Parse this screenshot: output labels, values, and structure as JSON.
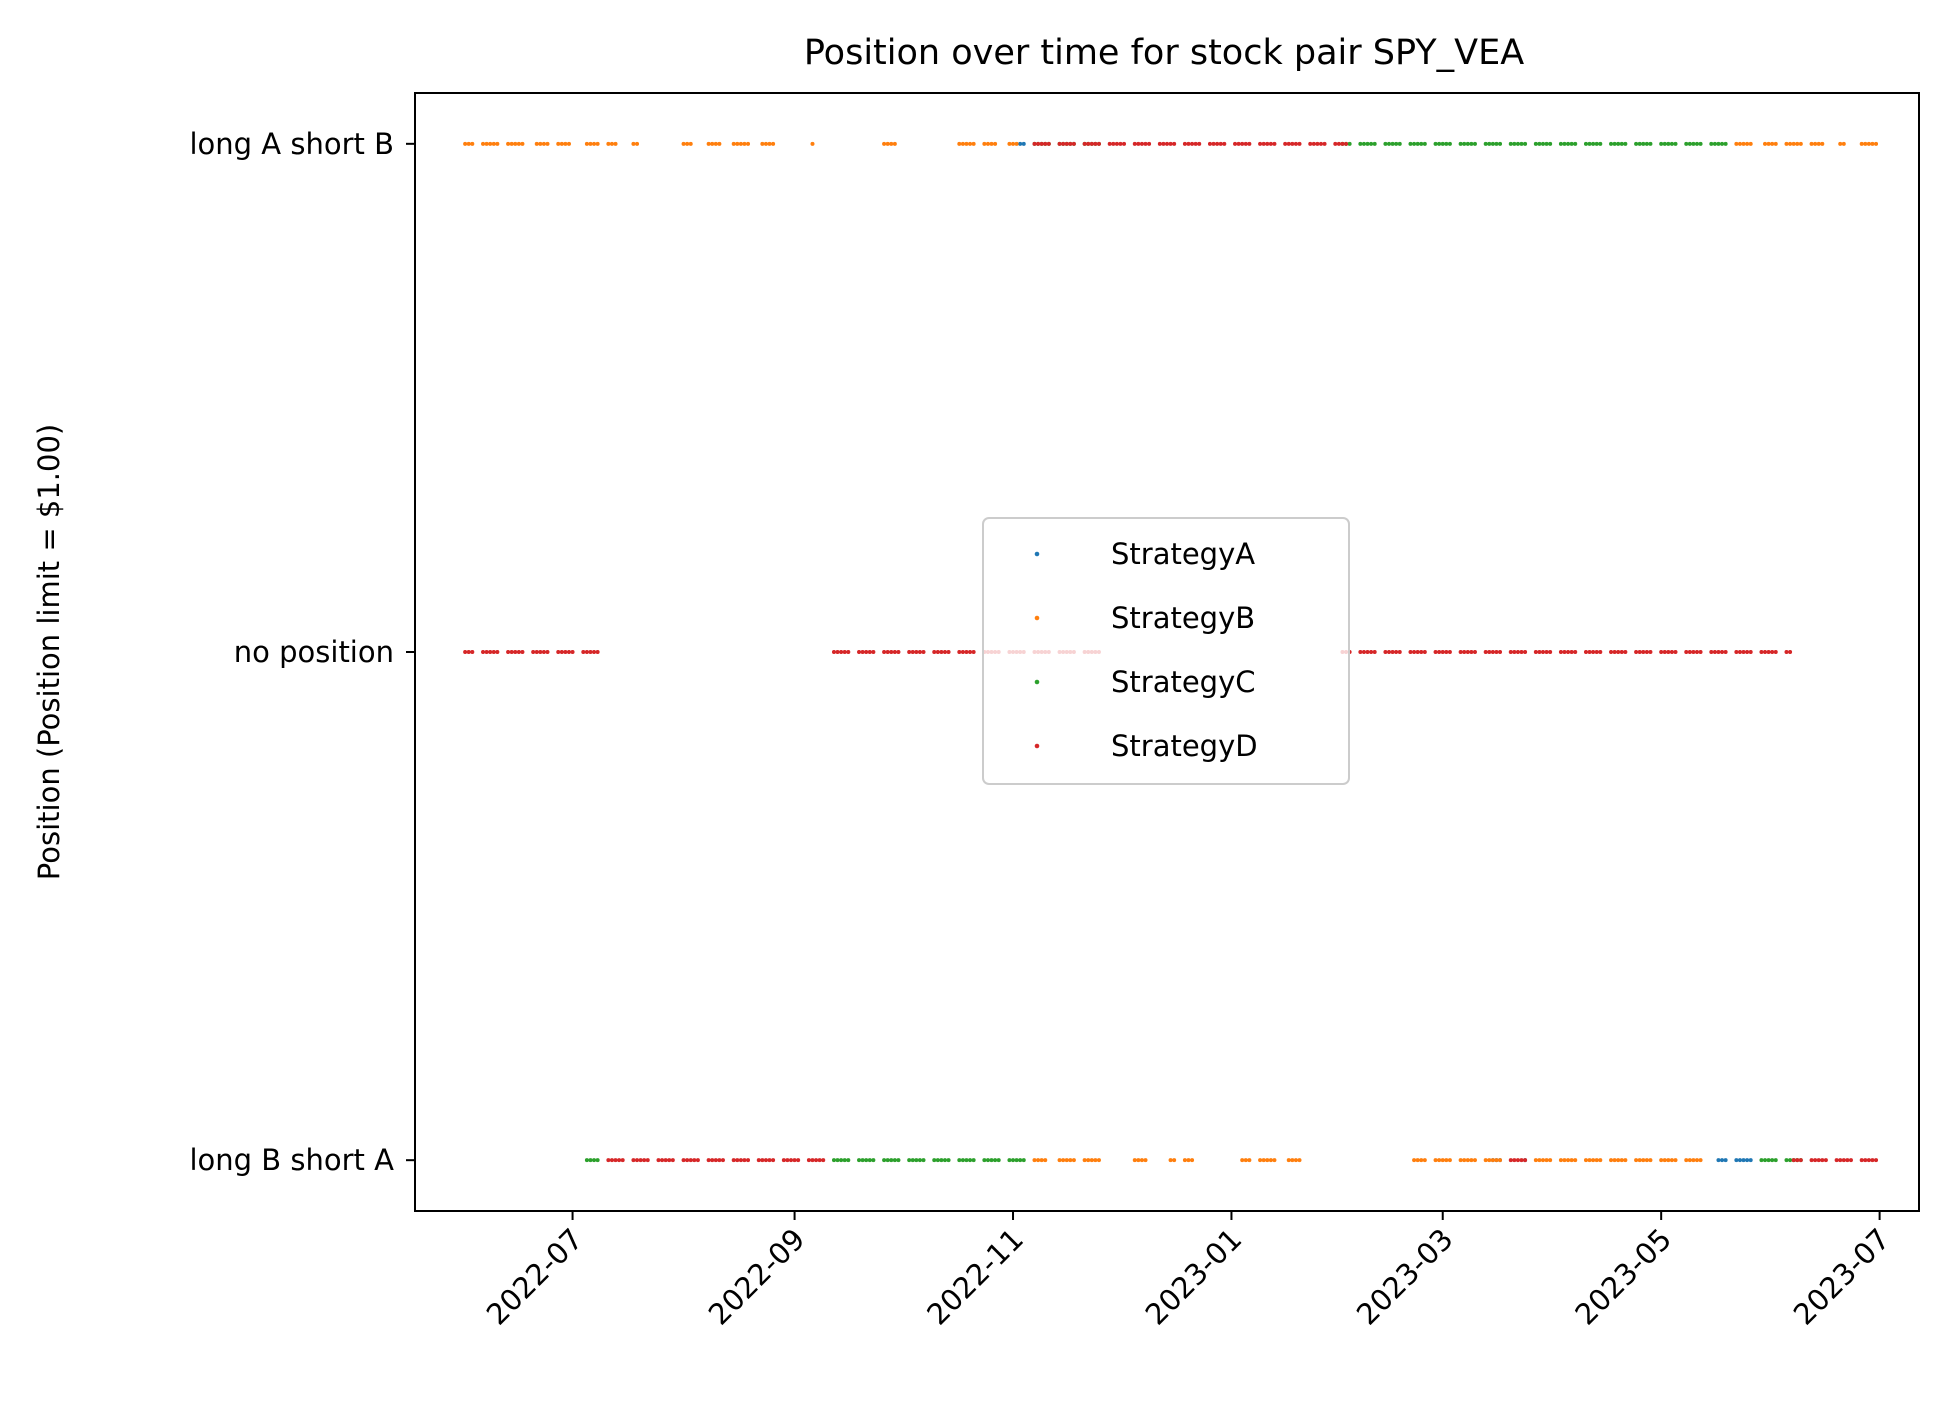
{
  "chart_data": {
    "type": "scatter",
    "title": "Position over time for stock pair SPY_VEA",
    "xlabel": "",
    "ylabel": "Position (Position limit = $1.00)",
    "x_axis": {
      "type": "date",
      "range": [
        "2022-05-18",
        "2023-07-12"
      ],
      "ticks": [
        "2022-07",
        "2022-09",
        "2022-11",
        "2023-01",
        "2023-03",
        "2023-05",
        "2023-07"
      ]
    },
    "y_axis": {
      "range": [
        -1.1,
        1.1
      ],
      "ticks": [
        {
          "value": 1,
          "label": "long A short B"
        },
        {
          "value": 0,
          "label": "no position"
        },
        {
          "value": -1,
          "label": "long B short A"
        }
      ]
    },
    "grid": false,
    "legend": {
      "placement": "center"
    },
    "series": [
      {
        "name": "StrategyA",
        "color": "#1f77b4",
        "segments": [
          {
            "y": 1,
            "start": "2022-11-03",
            "end": "2022-11-05"
          },
          {
            "y": -1,
            "start": "2023-03-15",
            "end": "2023-03-17"
          },
          {
            "y": -1,
            "start": "2023-03-24",
            "end": "2023-03-26"
          },
          {
            "y": -1,
            "start": "2023-05-17",
            "end": "2023-05-26"
          }
        ]
      },
      {
        "name": "StrategyB",
        "color": "#ff7f0e",
        "segments": [
          {
            "y": 1,
            "start": "2022-06-01",
            "end": "2022-06-03"
          },
          {
            "y": 1,
            "start": "2022-06-06",
            "end": "2022-06-10"
          },
          {
            "y": 1,
            "start": "2022-06-13",
            "end": "2022-06-17"
          },
          {
            "y": 1,
            "start": "2022-06-21",
            "end": "2022-06-24"
          },
          {
            "y": 1,
            "start": "2022-06-27",
            "end": "2022-06-30"
          },
          {
            "y": 1,
            "start": "2022-07-05",
            "end": "2022-07-08"
          },
          {
            "y": 1,
            "start": "2022-07-11",
            "end": "2022-07-13"
          },
          {
            "y": 1,
            "start": "2022-07-18",
            "end": "2022-07-19"
          },
          {
            "y": 1,
            "start": "2022-08-01",
            "end": "2022-08-03"
          },
          {
            "y": 1,
            "start": "2022-08-08",
            "end": "2022-08-11"
          },
          {
            "y": 1,
            "start": "2022-08-15",
            "end": "2022-08-19"
          },
          {
            "y": 1,
            "start": "2022-08-23",
            "end": "2022-08-26"
          },
          {
            "y": 1,
            "start": "2022-09-06",
            "end": "2022-09-06"
          },
          {
            "y": 1,
            "start": "2022-09-26",
            "end": "2022-09-29"
          },
          {
            "y": 1,
            "start": "2022-10-17",
            "end": "2022-10-21"
          },
          {
            "y": 1,
            "start": "2022-10-24",
            "end": "2022-10-27"
          },
          {
            "y": 1,
            "start": "2022-10-31",
            "end": "2022-11-02"
          },
          {
            "y": 1,
            "start": "2023-05-22",
            "end": "2023-05-26"
          },
          {
            "y": 1,
            "start": "2023-05-30",
            "end": "2023-06-02"
          },
          {
            "y": 1,
            "start": "2023-06-05",
            "end": "2023-06-09"
          },
          {
            "y": 1,
            "start": "2023-06-12",
            "end": "2023-06-15"
          },
          {
            "y": 1,
            "start": "2023-06-20",
            "end": "2023-06-21"
          },
          {
            "y": 1,
            "start": "2023-06-26",
            "end": "2023-06-30"
          },
          {
            "y": -1,
            "start": "2022-11-07",
            "end": "2022-11-10"
          },
          {
            "y": -1,
            "start": "2022-11-14",
            "end": "2022-11-18"
          },
          {
            "y": -1,
            "start": "2022-11-21",
            "end": "2022-11-25"
          },
          {
            "y": -1,
            "start": "2022-12-05",
            "end": "2022-12-08"
          },
          {
            "y": -1,
            "start": "2022-12-15",
            "end": "2022-12-21"
          },
          {
            "y": -1,
            "start": "2023-01-04",
            "end": "2023-01-13"
          },
          {
            "y": -1,
            "start": "2023-01-17",
            "end": "2023-01-20"
          },
          {
            "y": -1,
            "start": "2023-02-21",
            "end": "2023-02-24"
          },
          {
            "y": -1,
            "start": "2023-02-27",
            "end": "2023-03-03"
          },
          {
            "y": -1,
            "start": "2023-03-06",
            "end": "2023-03-10"
          },
          {
            "y": -1,
            "start": "2023-03-13",
            "end": "2023-03-17"
          },
          {
            "y": -1,
            "start": "2023-03-27",
            "end": "2023-03-31"
          },
          {
            "y": -1,
            "start": "2023-04-03",
            "end": "2023-04-07"
          },
          {
            "y": -1,
            "start": "2023-04-10",
            "end": "2023-04-14"
          },
          {
            "y": -1,
            "start": "2023-04-17",
            "end": "2023-04-21"
          },
          {
            "y": -1,
            "start": "2023-04-24",
            "end": "2023-04-28"
          },
          {
            "y": -1,
            "start": "2023-05-01",
            "end": "2023-05-05"
          },
          {
            "y": -1,
            "start": "2023-05-08",
            "end": "2023-05-12"
          }
        ]
      },
      {
        "name": "StrategyC",
        "color": "#2ca02c",
        "segments": [
          {
            "y": 1,
            "start": "2022-11-07",
            "end": "2022-11-25"
          },
          {
            "y": 1,
            "start": "2023-02-01",
            "end": "2023-05-19"
          },
          {
            "y": -1,
            "start": "2022-07-05",
            "end": "2022-07-08"
          },
          {
            "y": -1,
            "start": "2022-09-12",
            "end": "2022-11-04"
          },
          {
            "y": -1,
            "start": "2023-05-29",
            "end": "2023-06-09"
          }
        ]
      },
      {
        "name": "StrategyD",
        "color": "#d62728",
        "segments": [
          {
            "y": 1,
            "start": "2022-11-07",
            "end": "2023-02-02"
          },
          {
            "y": 0,
            "start": "2022-06-01",
            "end": "2022-07-08"
          },
          {
            "y": 0,
            "start": "2022-09-12",
            "end": "2022-11-25"
          },
          {
            "y": 0,
            "start": "2023-02-01",
            "end": "2023-06-06"
          },
          {
            "y": -1,
            "start": "2022-07-11",
            "end": "2022-09-09"
          },
          {
            "y": -1,
            "start": "2023-03-20",
            "end": "2023-03-24"
          },
          {
            "y": -1,
            "start": "2023-06-07",
            "end": "2023-06-30"
          }
        ]
      }
    ]
  }
}
